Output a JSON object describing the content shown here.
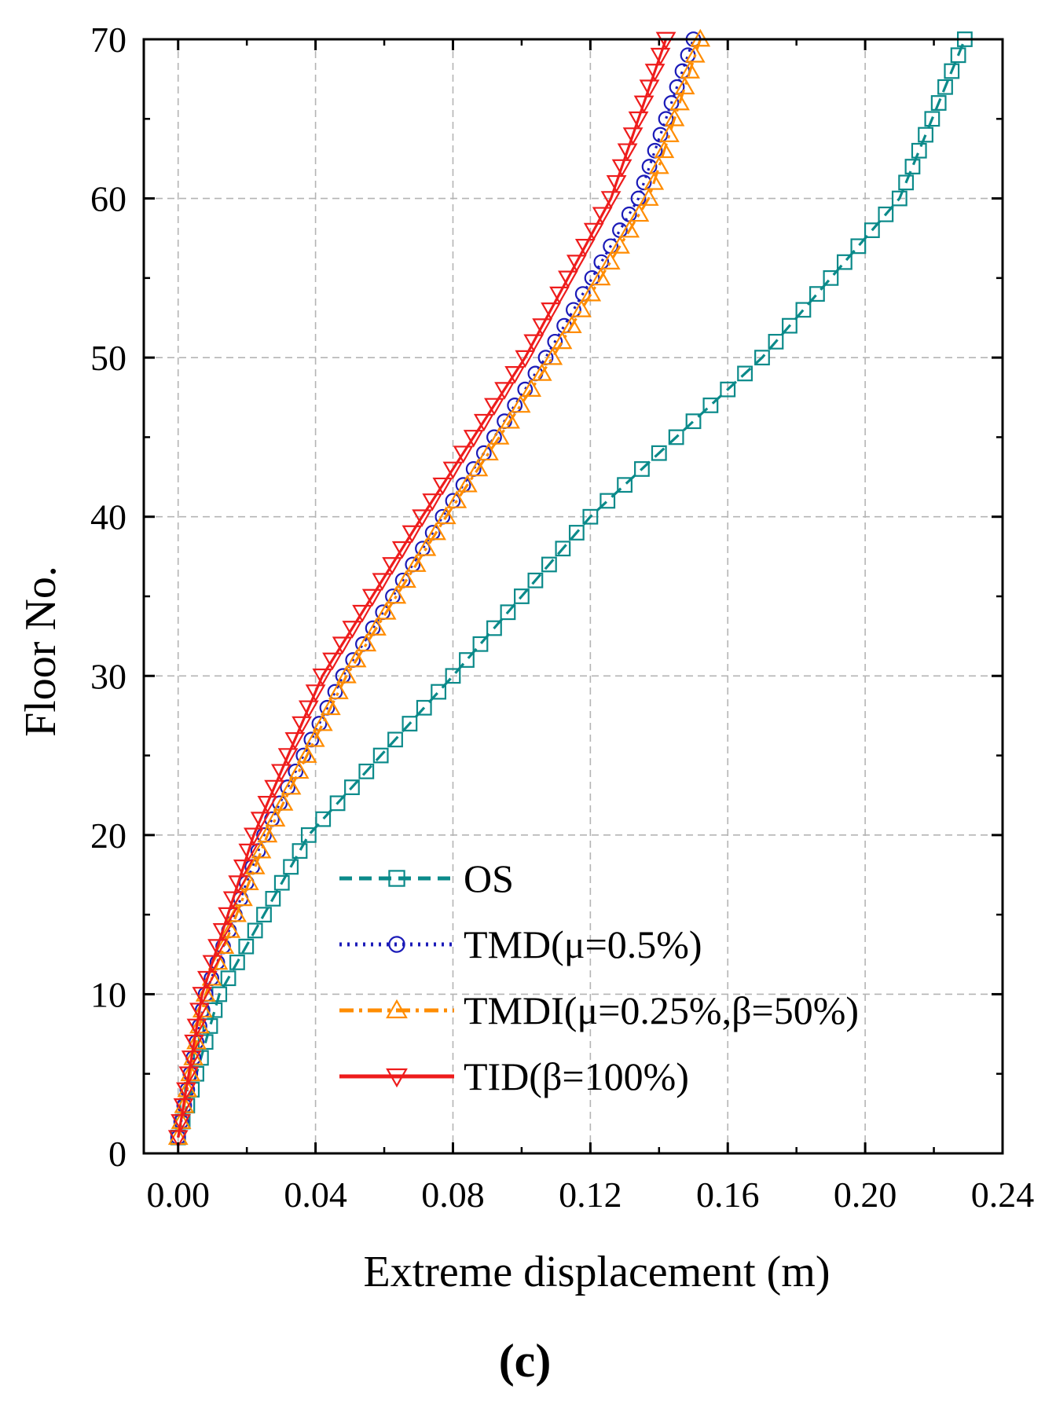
{
  "chart_data": {
    "type": "line",
    "orientation": "floor-profile",
    "xlabel": "Extreme displacement (m)",
    "ylabel": "Floor No.",
    "panel_label": "(c)",
    "xlim": [
      -0.01,
      0.24
    ],
    "ylim": [
      0,
      70
    ],
    "x_ticks": [
      0.0,
      0.04,
      0.08,
      0.12,
      0.16,
      0.2,
      0.24
    ],
    "x_tick_labels": [
      "0.00",
      "0.04",
      "0.08",
      "0.12",
      "0.16",
      "0.20",
      "0.24"
    ],
    "y_ticks": [
      0,
      10,
      20,
      30,
      40,
      50,
      60,
      70
    ],
    "y_tick_labels": [
      "0",
      "10",
      "20",
      "30",
      "40",
      "50",
      "60",
      "70"
    ],
    "grid": true,
    "legend_position": "bottom-center",
    "floors": [
      1,
      70
    ],
    "series": [
      {
        "name": "OS",
        "label": "OS",
        "color": "#0b8a8a",
        "dash": "dash",
        "marker": "square",
        "profile": [
          [
            1,
            0.0
          ],
          [
            10,
            0.012
          ],
          [
            20,
            0.038
          ],
          [
            30,
            0.08
          ],
          [
            40,
            0.12
          ],
          [
            50,
            0.17
          ],
          [
            60,
            0.21
          ],
          [
            70,
            0.229
          ]
        ]
      },
      {
        "name": "TMD",
        "label": "TMD(μ=0.5%)",
        "color": "#1b1bb8",
        "dash": "dot",
        "marker": "circle",
        "profile": [
          [
            1,
            0.0
          ],
          [
            10,
            0.008
          ],
          [
            20,
            0.025
          ],
          [
            30,
            0.048
          ],
          [
            40,
            0.077
          ],
          [
            50,
            0.107
          ],
          [
            60,
            0.134
          ],
          [
            70,
            0.15
          ]
        ]
      },
      {
        "name": "TMDI",
        "label": "TMDI(μ=0.25%,β=50%)",
        "color": "#ff8c00",
        "dash": "dashdot",
        "marker": "triangle-up",
        "profile": [
          [
            1,
            0.0
          ],
          [
            10,
            0.008
          ],
          [
            20,
            0.026
          ],
          [
            30,
            0.049
          ],
          [
            40,
            0.078
          ],
          [
            50,
            0.109
          ],
          [
            60,
            0.137
          ],
          [
            70,
            0.152
          ]
        ]
      },
      {
        "name": "TID",
        "label": "TID(β=100%)",
        "color": "#ee1c1c",
        "dash": "solid",
        "marker": "triangle-down",
        "profile": [
          [
            1,
            0.0
          ],
          [
            10,
            0.007
          ],
          [
            20,
            0.022
          ],
          [
            30,
            0.042
          ],
          [
            40,
            0.071
          ],
          [
            50,
            0.101
          ],
          [
            60,
            0.126
          ],
          [
            70,
            0.142
          ]
        ]
      }
    ]
  }
}
